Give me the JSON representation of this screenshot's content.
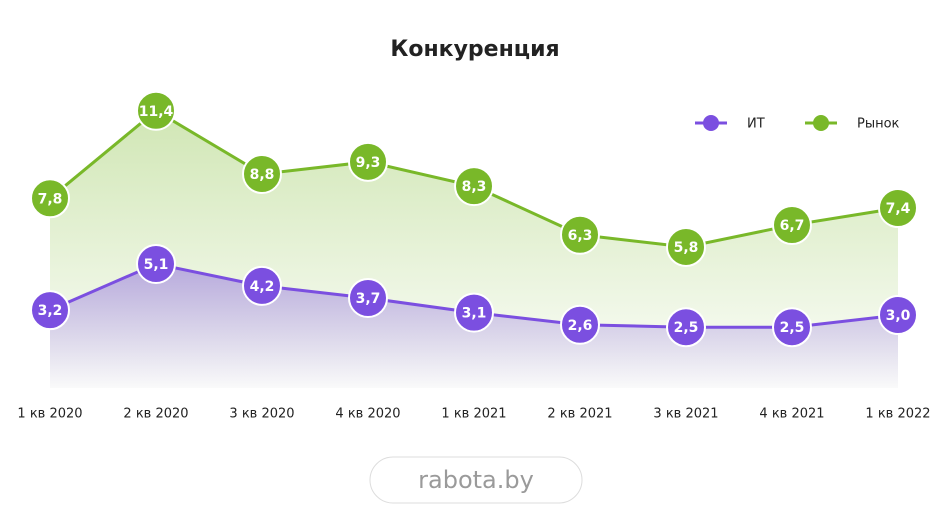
{
  "chart_data": {
    "type": "line",
    "title": "Конкуренция",
    "categories": [
      "1 кв 2020",
      "2 кв 2020",
      "3 кв 2020",
      "4 кв 2020",
      "1 кв 2021",
      "2 кв 2021",
      "3 кв 2021",
      "4 кв 2021",
      "1 кв 2022"
    ],
    "series": [
      {
        "name": "ИТ",
        "color": "#7b4fe0",
        "values": [
          3.2,
          5.1,
          4.2,
          3.7,
          3.1,
          2.6,
          2.5,
          2.5,
          3.0
        ],
        "value_labels": [
          "3,2",
          "5,1",
          "4,2",
          "3,7",
          "3,1",
          "2,6",
          "2,5",
          "2,5",
          "3,0"
        ]
      },
      {
        "name": "Рынок",
        "color": "#79b829",
        "values": [
          7.8,
          11.4,
          8.8,
          9.3,
          8.3,
          6.3,
          5.8,
          6.7,
          7.4
        ],
        "value_labels": [
          "7,8",
          "11,4",
          "8,8",
          "9,3",
          "8,3",
          "6,3",
          "5,8",
          "6,7",
          "7,4"
        ]
      }
    ],
    "ylim": [
      0,
      12.5
    ],
    "legend": "top-right",
    "area": true
  },
  "watermark": "rabota.by"
}
